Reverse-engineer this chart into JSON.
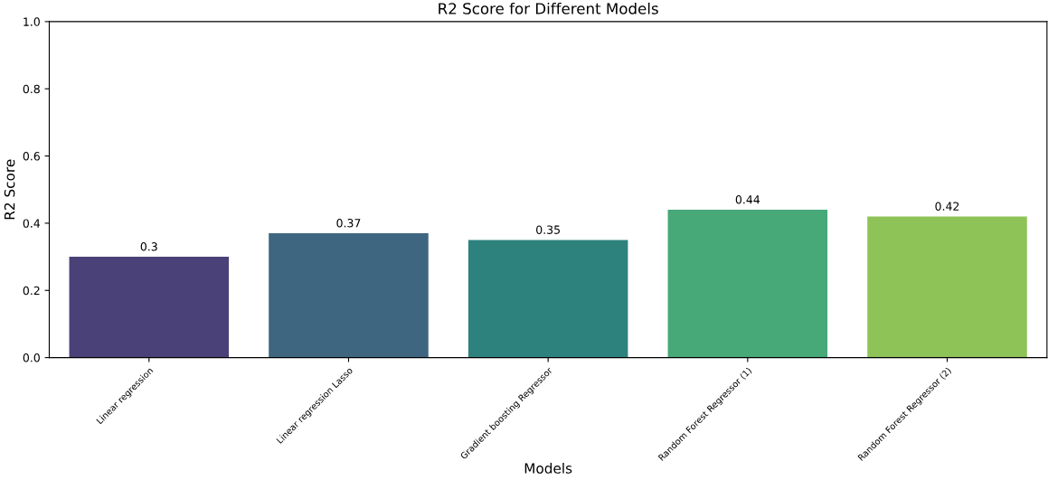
{
  "chart_data": {
    "type": "bar",
    "title": "R2 Score for Different Models",
    "xlabel": "Models",
    "ylabel": "R2 Score",
    "categories": [
      "Linear regression",
      "Linear regression Lasso",
      "Gradient boosting Regressor",
      "Random Forest Regressor (1)",
      "Random Forest Regressor (2)"
    ],
    "values": [
      0.3,
      0.37,
      0.35,
      0.44,
      0.42
    ],
    "colors": [
      "#4a4178",
      "#3e6680",
      "#2e827e",
      "#47a878",
      "#8dc357"
    ],
    "ylim": [
      0,
      1
    ],
    "yticks": [
      {
        "value": 0,
        "label": "0.0"
      },
      0.2,
      0.4,
      0.6,
      0.8,
      {
        "value": 1,
        "label": "1.0"
      }
    ],
    "data_labels": true,
    "grid": false
  }
}
